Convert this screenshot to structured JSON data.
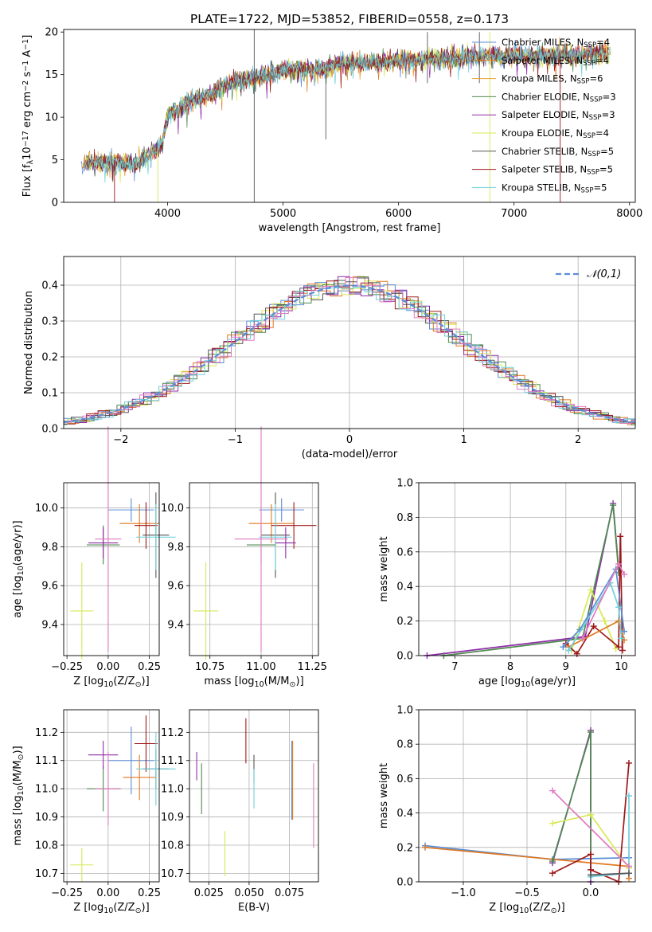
{
  "title": "PLATE=1722, MJD=53852, FIBERID=0558, z=0.173",
  "colors": {
    "c_miles": "#5B8DD6",
    "s_miles": "#E07820",
    "k_miles": "#E8A030",
    "c_elodie": "#4E8A4E",
    "s_elodie": "#8E2CA8",
    "k_elodie": "#D8E855",
    "c_stelib": "#555555",
    "s_stelib": "#A01818",
    "k_stelib": "#6FD0DD",
    "pink": "#E07AC0",
    "gauss": "#5B8DD6",
    "grid": "#b0b0b0"
  },
  "chart_data": [
    {
      "id": "spectrum",
      "type": "line",
      "xlabel": "wavelength [Angstrom, rest frame]",
      "ylabel": "Flux [f$_\\lambda$10$^{-17}$ erg cm$^{-2}$ s$^{-1}$ A$^{-1}$]",
      "ylabel_parts": [
        "Flux [f",
        "λ",
        "10",
        "−17",
        " erg cm",
        "−2",
        " s",
        "−1",
        " A",
        "−1",
        "]"
      ],
      "xlim": [
        3100,
        8050
      ],
      "ylim": [
        0,
        20.3
      ],
      "xticks": [
        4000,
        5000,
        6000,
        7000,
        8000
      ],
      "yticks": [
        0,
        5,
        10,
        15,
        20
      ],
      "continuum": [
        [
          3250,
          4.6
        ],
        [
          3500,
          4.8
        ],
        [
          3700,
          4.5
        ],
        [
          3850,
          5.6
        ],
        [
          3950,
          6.8
        ],
        [
          4000,
          10.2
        ],
        [
          4200,
          12
        ],
        [
          4300,
          12.2
        ],
        [
          4500,
          13.8
        ],
        [
          4700,
          14.5
        ],
        [
          5000,
          15.5
        ],
        [
          5300,
          15.6
        ],
        [
          5500,
          16.3
        ],
        [
          6000,
          16.6
        ],
        [
          6300,
          16.9
        ],
        [
          6500,
          17
        ],
        [
          7000,
          17.2
        ],
        [
          7500,
          17.3
        ],
        [
          7850,
          17.6
        ]
      ],
      "legend": [
        {
          "name": "Chabrier MILES, N",
          "sub": "SSP",
          "n": "=4",
          "color": "c_miles"
        },
        {
          "name": "Salpeter MILES, N",
          "sub": "SSP",
          "n": "=4",
          "color": "s_miles"
        },
        {
          "name": "Kroupa MILES, N",
          "sub": "SSP",
          "n": "=6",
          "color": "k_miles"
        },
        {
          "name": "Chabrier ELODIE, N",
          "sub": "SSP",
          "n": "=3",
          "color": "c_elodie"
        },
        {
          "name": "Salpeter ELODIE, N",
          "sub": "SSP",
          "n": "=3",
          "color": "s_elodie"
        },
        {
          "name": "Kroupa ELODIE, N",
          "sub": "SSP",
          "n": "=4",
          "color": "k_elodie"
        },
        {
          "name": "Chabrier STELIB, N",
          "sub": "SSP",
          "n": "=5",
          "color": "c_stelib"
        },
        {
          "name": "Salpeter STELIB, N",
          "sub": "SSP",
          "n": "=5",
          "color": "s_stelib"
        },
        {
          "name": "Kroupa STELIB, N",
          "sub": "SSP",
          "n": "=5",
          "color": "k_stelib"
        }
      ]
    },
    {
      "id": "residuals",
      "type": "line",
      "xlabel": "(data-model)/error",
      "ylabel": "Normed distribution",
      "xlim": [
        -2.5,
        2.5
      ],
      "ylim": [
        0,
        0.48
      ],
      "xticks": [
        -2,
        -1,
        0,
        1,
        2
      ],
      "xtick_labels": [
        "−2",
        "−1",
        "0",
        "1",
        "2"
      ],
      "yticks": [
        0.0,
        0.1,
        0.2,
        0.3,
        0.4
      ],
      "ytick_labels": [
        "0.0",
        "0.1",
        "0.2",
        "0.3",
        "0.4"
      ],
      "legend": "𝒩(0,1)",
      "bin_width": 0.1,
      "hist_colors": [
        "c_miles",
        "s_miles",
        "c_elodie",
        "s_elodie",
        "k_elodie",
        "c_stelib",
        "s_stelib",
        "k_stelib",
        "pink"
      ]
    },
    {
      "id": "z_age",
      "type": "scatter",
      "xlabel": "Z [log$_{10}$(Z/Z$_\\odot$)]",
      "ylabel": "age  [log$_{10}$(age/yr)]",
      "xlim": [
        -0.27,
        0.31
      ],
      "ylim": [
        9.24,
        10.13
      ],
      "xticks": [
        -0.25,
        0.0,
        0.25
      ],
      "xtick_labels": [
        "−0.25",
        "0.00",
        "0.25"
      ],
      "yticks": [
        9.4,
        9.6,
        9.8,
        10.0
      ],
      "ytick_labels": [
        "9.4",
        "9.6",
        "9.8",
        "10.0"
      ],
      "points": [
        {
          "x": 0.14,
          "y": 9.99,
          "xerr": 0.14,
          "yerr": 0.06,
          "color": "c_miles"
        },
        {
          "x": 0.19,
          "y": 9.92,
          "xerr": 0.12,
          "yerr": 0.1,
          "color": "s_miles"
        },
        {
          "x": 0.23,
          "y": 9.91,
          "xerr": 0.07,
          "yerr": 0.12,
          "color": "s_stelib"
        },
        {
          "x": 0.29,
          "y": 9.86,
          "xerr": 0.08,
          "yerr": 0.22,
          "color": "c_stelib"
        },
        {
          "x": 0.29,
          "y": 9.85,
          "xerr": 0.12,
          "yerr": 0.17,
          "color": "k_stelib"
        },
        {
          "x": -0.03,
          "y": 9.81,
          "xerr": 0.1,
          "yerr": 0.1,
          "color": "c_elodie"
        },
        {
          "x": -0.03,
          "y": 9.82,
          "xerr": 0.09,
          "yerr": 0.08,
          "color": "s_elodie"
        },
        {
          "x": 0.0,
          "y": 9.84,
          "xerr": 0.08,
          "yerr": 0.58,
          "color": "pink"
        },
        {
          "x": -0.16,
          "y": 9.47,
          "xerr": 0.07,
          "yerr": 0.25,
          "color": "k_elodie"
        }
      ]
    },
    {
      "id": "mass_age",
      "type": "scatter",
      "xlabel": "mass [log$_{10}$(M/M$_\\odot$)]",
      "ylabel": "",
      "xlim": [
        10.65,
        11.28
      ],
      "ylim": [
        9.24,
        10.13
      ],
      "xticks": [
        10.75,
        11.0,
        11.25
      ],
      "xtick_labels": [
        "10.75",
        "11.00",
        "11.25"
      ],
      "yticks": [
        9.4,
        9.6,
        9.8,
        10.0
      ],
      "ytick_labels": [
        "9.4",
        "9.6",
        "9.8",
        "10.0"
      ],
      "points": [
        {
          "x": 11.1,
          "y": 9.99,
          "xerr": 0.11,
          "yerr": 0.06,
          "color": "c_miles"
        },
        {
          "x": 11.05,
          "y": 9.92,
          "xerr": 0.11,
          "yerr": 0.1,
          "color": "s_miles"
        },
        {
          "x": 11.16,
          "y": 9.91,
          "xerr": 0.11,
          "yerr": 0.12,
          "color": "s_stelib"
        },
        {
          "x": 11.07,
          "y": 9.86,
          "xerr": 0.07,
          "yerr": 0.22,
          "color": "c_stelib"
        },
        {
          "x": 11.07,
          "y": 9.85,
          "xerr": 0.08,
          "yerr": 0.17,
          "color": "k_stelib"
        },
        {
          "x": 11.0,
          "y": 9.81,
          "xerr": 0.07,
          "yerr": 0.1,
          "color": "c_elodie"
        },
        {
          "x": 11.12,
          "y": 9.82,
          "xerr": 0.05,
          "yerr": 0.08,
          "color": "s_elodie"
        },
        {
          "x": 11.0,
          "y": 9.84,
          "xerr": 0.13,
          "yerr": 0.58,
          "color": "pink"
        },
        {
          "x": 10.73,
          "y": 9.47,
          "xerr": 0.06,
          "yerr": 0.25,
          "color": "k_elodie"
        }
      ]
    },
    {
      "id": "age_weight",
      "type": "line",
      "xlabel": "age  [log$_{10}$(age/yr)]",
      "ylabel": "mass weight",
      "xlim": [
        6.35,
        10.25
      ],
      "ylim": [
        0,
        1.0
      ],
      "xticks": [
        7,
        8,
        9,
        10
      ],
      "xtick_labels": [
        "7",
        "8",
        "9",
        "10"
      ],
      "yticks": [
        0.0,
        0.2,
        0.4,
        0.6,
        0.8,
        1.0
      ],
      "ytick_labels": [
        "0.0",
        "0.2",
        "0.4",
        "0.6",
        "0.8",
        "1.0"
      ],
      "series": [
        {
          "color": "s_elodie",
          "pts": [
            [
              6.5,
              0.0
            ],
            [
              9.35,
              0.11
            ],
            [
              9.85,
              0.88
            ],
            [
              9.95,
              0.5
            ]
          ]
        },
        {
          "color": "c_elodie",
          "pts": [
            [
              6.8,
              0.0
            ],
            [
              9.3,
              0.1
            ],
            [
              9.85,
              0.87
            ],
            [
              9.95,
              0.48
            ]
          ]
        },
        {
          "color": "k_elodie",
          "pts": [
            [
              9.1,
              0.03
            ],
            [
              9.45,
              0.38
            ],
            [
              9.7,
              0.2
            ],
            [
              9.9,
              0.04
            ]
          ]
        },
        {
          "color": "s_stelib",
          "pts": [
            [
              9.0,
              0.07
            ],
            [
              9.2,
              0.01
            ],
            [
              9.5,
              0.17
            ],
            [
              9.95,
              0.05
            ],
            [
              9.98,
              0.69
            ],
            [
              10.02,
              0.03
            ]
          ]
        },
        {
          "color": "s_miles",
          "pts": [
            [
              9.05,
              0.05
            ],
            [
              9.95,
              0.2
            ],
            [
              10.05,
              0.09
            ]
          ]
        },
        {
          "color": "c_miles",
          "pts": [
            [
              8.95,
              0.05
            ],
            [
              9.25,
              0.15
            ],
            [
              9.9,
              0.5
            ],
            [
              10.05,
              0.14
            ]
          ]
        },
        {
          "color": "k_stelib",
          "pts": [
            [
              9.05,
              0.03
            ],
            [
              9.8,
              0.42
            ],
            [
              9.95,
              0.28
            ],
            [
              10.0,
              0.1
            ]
          ]
        },
        {
          "color": "pink",
          "pts": [
            [
              9.3,
              0.1
            ],
            [
              9.95,
              0.53
            ],
            [
              10.05,
              0.47
            ]
          ]
        }
      ]
    },
    {
      "id": "z_mass",
      "type": "scatter",
      "xlabel": "Z [log$_{10}$(Z/Z$_\\odot$)]",
      "ylabel": "mass [log$_{10}$(M/M$_\\odot$)]",
      "xlim": [
        -0.27,
        0.31
      ],
      "ylim": [
        10.67,
        11.28
      ],
      "xticks": [
        -0.25,
        0.0,
        0.25
      ],
      "xtick_labels": [
        "−0.25",
        "0.00",
        "0.25"
      ],
      "yticks": [
        10.7,
        10.8,
        10.9,
        11.0,
        11.1,
        11.2
      ],
      "ytick_labels": [
        "10.7",
        "10.8",
        "10.9",
        "11.0",
        "11.1",
        "11.2"
      ],
      "points": [
        {
          "x": 0.14,
          "y": 11.1,
          "xerr": 0.14,
          "yerr": 0.12,
          "color": "c_miles"
        },
        {
          "x": 0.19,
          "y": 11.04,
          "xerr": 0.1,
          "yerr": 0.08,
          "color": "s_miles"
        },
        {
          "x": 0.23,
          "y": 11.16,
          "xerr": 0.07,
          "yerr": 0.1,
          "color": "s_stelib"
        },
        {
          "x": 0.29,
          "y": 11.07,
          "xerr": 0.08,
          "yerr": 0.07,
          "color": "c_stelib"
        },
        {
          "x": 0.29,
          "y": 11.07,
          "xerr": 0.12,
          "yerr": 0.13,
          "color": "k_stelib"
        },
        {
          "x": -0.03,
          "y": 11.0,
          "xerr": 0.1,
          "yerr": 0.08,
          "color": "c_elodie"
        },
        {
          "x": -0.03,
          "y": 11.12,
          "xerr": 0.09,
          "yerr": 0.05,
          "color": "s_elodie"
        },
        {
          "x": 0.0,
          "y": 11.0,
          "xerr": 0.08,
          "yerr": 0.13,
          "color": "pink"
        },
        {
          "x": -0.16,
          "y": 10.73,
          "xerr": 0.07,
          "yerr": 0.06,
          "color": "k_elodie"
        }
      ]
    },
    {
      "id": "ebv_mass",
      "type": "scatter",
      "xlabel": "E(B-V)",
      "ylabel": "",
      "xlim": [
        0.013,
        0.093
      ],
      "ylim": [
        10.67,
        11.28
      ],
      "xticks": [
        0.025,
        0.05,
        0.075
      ],
      "xtick_labels": [
        "0.025",
        "0.050",
        "0.075"
      ],
      "yticks": [
        10.7,
        10.8,
        10.9,
        11.0,
        11.1,
        11.2
      ],
      "ytick_labels": [
        "10.7",
        "10.8",
        "10.9",
        "11.0",
        "11.1",
        "11.2"
      ],
      "points": [
        {
          "x": 0.0175,
          "y": 11.08,
          "yerr": 0.05,
          "color": "s_elodie"
        },
        {
          "x": 0.0205,
          "y": 11.0,
          "yerr": 0.09,
          "color": "c_elodie"
        },
        {
          "x": 0.035,
          "y": 10.77,
          "yerr": 0.08,
          "color": "k_elodie"
        },
        {
          "x": 0.048,
          "y": 11.17,
          "yerr": 0.08,
          "color": "s_stelib"
        },
        {
          "x": 0.053,
          "y": 11.07,
          "yerr": 0.05,
          "color": "c_stelib"
        },
        {
          "x": 0.053,
          "y": 11.0,
          "yerr": 0.07,
          "color": "k_stelib"
        },
        {
          "x": 0.0765,
          "y": 11.03,
          "yerr": 0.14,
          "color": "c_miles"
        },
        {
          "x": 0.077,
          "y": 11.03,
          "yerr": 0.14,
          "color": "s_miles"
        },
        {
          "x": 0.09,
          "y": 10.94,
          "yerr": 0.15,
          "color": "pink"
        }
      ]
    },
    {
      "id": "z_weight",
      "type": "line",
      "xlabel": "Z [log$_{10}$(Z/Z$_\\odot$)]",
      "ylabel": "mass weight",
      "xlim": [
        -1.35,
        0.35
      ],
      "ylim": [
        0,
        1.0
      ],
      "xticks": [
        -1.0,
        -0.5,
        0.0
      ],
      "xtick_labels": [
        "−1.0",
        "−0.5",
        "0.0"
      ],
      "yticks": [
        0.0,
        0.2,
        0.4,
        0.6,
        0.8,
        1.0
      ],
      "ytick_labels": [
        "0.0",
        "0.2",
        "0.4",
        "0.6",
        "0.8",
        "1.0"
      ],
      "series": [
        {
          "color": "c_miles",
          "pts": [
            [
              -1.3,
              0.21
            ],
            [
              -0.3,
              0.13
            ],
            [
              0.3,
              0.14
            ]
          ]
        },
        {
          "color": "s_miles",
          "pts": [
            [
              -1.3,
              0.2
            ],
            [
              0.3,
              0.09
            ],
            [
              0.3,
              0.02
            ]
          ]
        },
        {
          "color": "s_elodie",
          "pts": [
            [
              -0.3,
              0.11
            ],
            [
              0.0,
              0.88
            ],
            [
              0.0,
              0.0
            ]
          ]
        },
        {
          "color": "c_elodie",
          "pts": [
            [
              -0.3,
              0.12
            ],
            [
              0.0,
              0.87
            ],
            [
              0.0,
              0.03
            ]
          ]
        },
        {
          "color": "k_elodie",
          "pts": [
            [
              -0.3,
              0.34
            ],
            [
              0.0,
              0.39
            ],
            [
              0.3,
              0.08
            ]
          ]
        },
        {
          "color": "s_stelib",
          "pts": [
            [
              -0.3,
              0.05
            ],
            [
              0.0,
              0.16
            ],
            [
              0.0,
              0.07
            ],
            [
              0.22,
              0.0
            ],
            [
              0.3,
              0.69
            ]
          ]
        },
        {
          "color": "k_stelib",
          "pts": [
            [
              0.0,
              0.03
            ],
            [
              0.3,
              0.05
            ],
            [
              0.3,
              0.5
            ]
          ]
        },
        {
          "color": "pink",
          "pts": [
            [
              -0.3,
              0.53
            ],
            [
              0.3,
              0.09
            ]
          ]
        },
        {
          "color": "c_stelib",
          "pts": [
            [
              0.0,
              0.04
            ],
            [
              0.3,
              0.05
            ]
          ]
        }
      ]
    }
  ]
}
